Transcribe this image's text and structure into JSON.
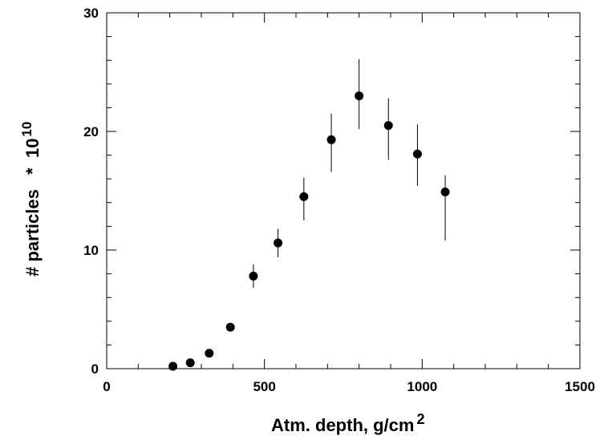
{
  "chart_data": {
    "type": "scatter",
    "xlabel": "Atm. depth, g/cm",
    "xlabel_sup": "2",
    "ylabel": "# particles   *  10",
    "ylabel_sup": "10",
    "xlim": [
      0,
      1500
    ],
    "ylim": [
      0,
      30
    ],
    "x_ticks": [
      "0",
      "500",
      "1000",
      "1500"
    ],
    "y_ticks": [
      "0",
      "10",
      "20",
      "30"
    ],
    "grid": false,
    "marker_color": "#000000",
    "points": [
      {
        "x": 210,
        "y": 0.2,
        "err_low": 0.2,
        "err_high": 0.2
      },
      {
        "x": 265,
        "y": 0.5,
        "err_low": 0.2,
        "err_high": 0.2
      },
      {
        "x": 325,
        "y": 1.3,
        "err_low": 0.2,
        "err_high": 0.2
      },
      {
        "x": 392,
        "y": 3.5,
        "err_low": 0.3,
        "err_high": 0.3
      },
      {
        "x": 465,
        "y": 7.8,
        "err_low": 1.0,
        "err_high": 1.0
      },
      {
        "x": 543,
        "y": 10.6,
        "err_low": 1.2,
        "err_high": 1.2
      },
      {
        "x": 625,
        "y": 14.5,
        "err_low": 2.0,
        "err_high": 1.6
      },
      {
        "x": 712,
        "y": 19.3,
        "err_low": 2.7,
        "err_high": 2.2
      },
      {
        "x": 800,
        "y": 23.0,
        "err_low": 2.8,
        "err_high": 3.1
      },
      {
        "x": 893,
        "y": 20.5,
        "err_low": 2.9,
        "err_high": 2.3
      },
      {
        "x": 985,
        "y": 18.1,
        "err_low": 2.7,
        "err_high": 2.5
      },
      {
        "x": 1073,
        "y": 14.9,
        "err_low": 4.1,
        "err_high": 1.4
      }
    ]
  }
}
